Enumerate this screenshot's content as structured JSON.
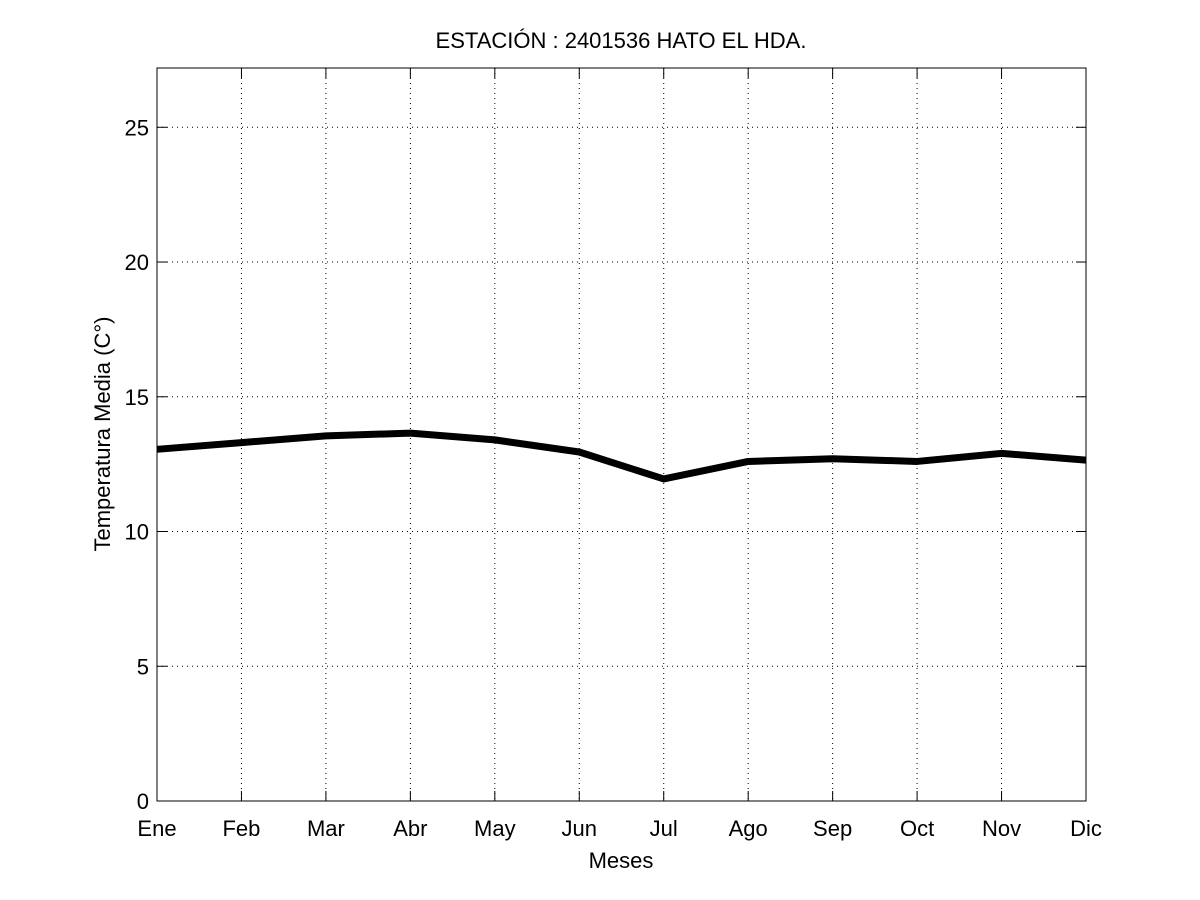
{
  "chart_data": {
    "type": "line",
    "title": "ESTACIÓN :  2401536  HATO EL HDA.",
    "xlabel": "Meses",
    "ylabel": "Temperatura Media (C°)",
    "categories": [
      "Ene",
      "Feb",
      "Mar",
      "Abr",
      "May",
      "Jun",
      "Jul",
      "Ago",
      "Sep",
      "Oct",
      "Nov",
      "Dic"
    ],
    "series": [
      {
        "values": [
          13.05,
          13.3,
          13.55,
          13.65,
          13.4,
          12.95,
          11.95,
          12.6,
          12.7,
          12.6,
          12.9,
          12.65
        ]
      }
    ],
    "ylim": [
      0,
      27.2
    ],
    "yticks": [
      0,
      5,
      10,
      15,
      20,
      25
    ],
    "grid": true,
    "legend": "none",
    "line_color": "#000000"
  }
}
